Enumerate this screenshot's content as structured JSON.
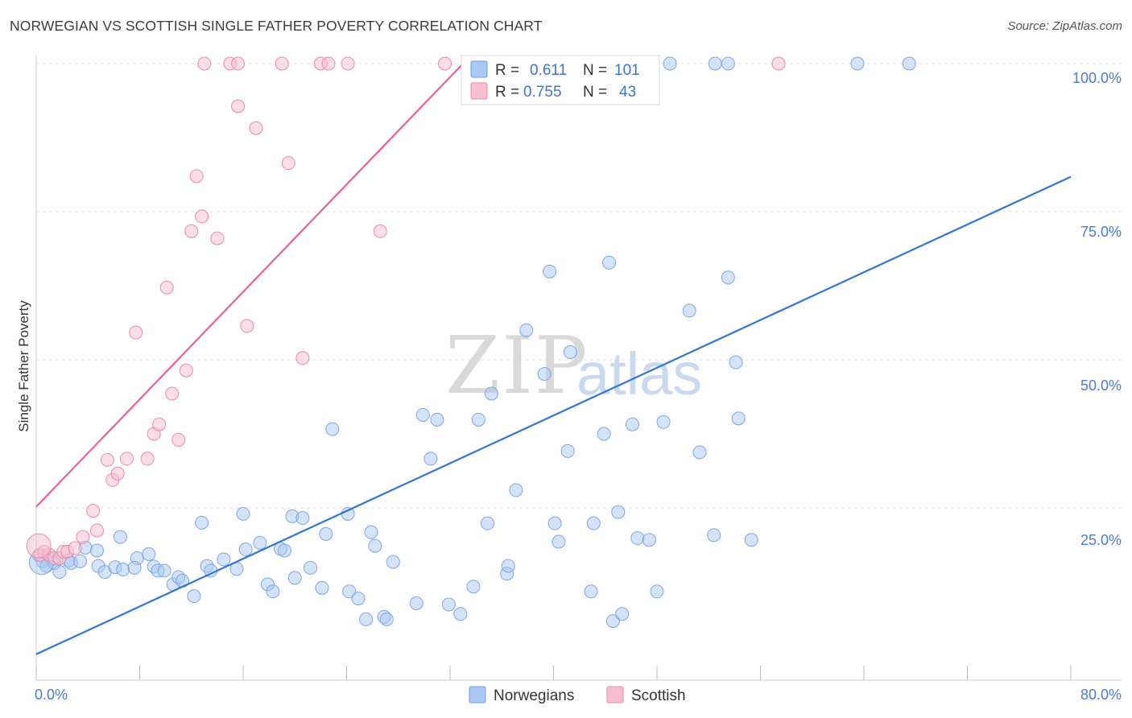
{
  "title": "NORWEGIAN VS SCOTTISH SINGLE FATHER POVERTY CORRELATION CHART",
  "source": "Source: ZipAtlas.com",
  "watermark": {
    "part1": "ZIP",
    "part2": "atlas"
  },
  "legend": {
    "r_label": "R =",
    "n_label": "N =",
    "rows": [
      {
        "r": "0.611",
        "n": "101",
        "color": "#a9c8f2",
        "stroke": "#6f9ee6"
      },
      {
        "r": "0.755",
        "n": "43",
        "color": "#f7bdd0",
        "stroke": "#ec8aa9"
      }
    ]
  },
  "bottom_legend": [
    "Norwegians",
    "Scottish"
  ],
  "colors": {
    "blue_fill": "#a9c8f2",
    "blue_stroke": "#7ba7e6",
    "blue_line": "#2e74d0",
    "pink_fill": "#f7bdd0",
    "pink_stroke": "#ec8aa9",
    "pink_line": "#e8648c",
    "grid": "#e2e2e2",
    "tick_text": "#4a7bd0"
  },
  "chart_data": {
    "type": "scatter",
    "title": "NORWEGIAN VS SCOTTISH SINGLE FATHER POVERTY CORRELATION CHART",
    "xlabel": "",
    "ylabel": "Single Father Poverty",
    "xlim": [
      0,
      80
    ],
    "ylim": [
      0,
      100
    ],
    "x_tick_labels": [
      "0.0%",
      "80.0%"
    ],
    "y_tick_labels": [
      "25.0%",
      "50.0%",
      "75.0%",
      "100.0%"
    ],
    "y_ticks": [
      25,
      50,
      75,
      100
    ],
    "grid": true,
    "legend_position": "top-center",
    "series": [
      {
        "name": "Norwegians",
        "r": 0.611,
        "n": 101,
        "trend": {
          "x": [
            0,
            80
          ],
          "y": [
            0.3,
            80.9
          ]
        },
        "points": [
          [
            0.2,
            17
          ],
          [
            0.5,
            16
          ],
          [
            0.8,
            15.2
          ],
          [
            1.2,
            16.3
          ],
          [
            1.4,
            15.7
          ],
          [
            1.8,
            14.2
          ],
          [
            2.5,
            16.1
          ],
          [
            2.7,
            15.7
          ],
          [
            3.4,
            16
          ],
          [
            3.8,
            18.3
          ],
          [
            4.7,
            17.8
          ],
          [
            4.8,
            15.2
          ],
          [
            5.3,
            14.2
          ],
          [
            6.1,
            15
          ],
          [
            6.5,
            20.1
          ],
          [
            6.7,
            14.6
          ],
          [
            7.8,
            16.5
          ],
          [
            7.6,
            14.9
          ],
          [
            8.7,
            17.2
          ],
          [
            9.1,
            15.1
          ],
          [
            9.4,
            14.4
          ],
          [
            9.9,
            14.4
          ],
          [
            10.6,
            12.1
          ],
          [
            11.0,
            13.3
          ],
          [
            11.3,
            12.7
          ],
          [
            12.2,
            10.1
          ],
          [
            12.8,
            22.5
          ],
          [
            13.2,
            15.2
          ],
          [
            13.5,
            14.4
          ],
          [
            14.5,
            16.3
          ],
          [
            15.5,
            14.7
          ],
          [
            16.0,
            24
          ],
          [
            16.2,
            18
          ],
          [
            17.3,
            19.1
          ],
          [
            17.9,
            12.1
          ],
          [
            18.3,
            10.9
          ],
          [
            18.9,
            18.1
          ],
          [
            19.2,
            17.8
          ],
          [
            19.8,
            23.6
          ],
          [
            20.0,
            13.2
          ],
          [
            20.6,
            23.3
          ],
          [
            21.2,
            14.9
          ],
          [
            22.1,
            11.5
          ],
          [
            22.4,
            20.6
          ],
          [
            22.9,
            38.3
          ],
          [
            24.1,
            24
          ],
          [
            24.2,
            10.9
          ],
          [
            24.9,
            9.7
          ],
          [
            25.5,
            6.2
          ],
          [
            25.9,
            20.9
          ],
          [
            26.2,
            18.6
          ],
          [
            26.9,
            6.6
          ],
          [
            27.1,
            6.2
          ],
          [
            27.6,
            15.9
          ],
          [
            29.4,
            8.9
          ],
          [
            29.9,
            40.7
          ],
          [
            30.5,
            33.3
          ],
          [
            31.0,
            39.9
          ],
          [
            31.9,
            8.7
          ],
          [
            32.8,
            7.1
          ],
          [
            33.8,
            11.7
          ],
          [
            34.2,
            39.9
          ],
          [
            34.9,
            22.4
          ],
          [
            35.2,
            44.3
          ],
          [
            36.4,
            13.9
          ],
          [
            36.5,
            15.2
          ],
          [
            37.1,
            28
          ],
          [
            37.9,
            55
          ],
          [
            39.3,
            47.6
          ],
          [
            39.7,
            64.9
          ],
          [
            40.1,
            22.4
          ],
          [
            40.4,
            19.3
          ],
          [
            41.1,
            34.6
          ],
          [
            41.3,
            51.3
          ],
          [
            42.9,
            10.9
          ],
          [
            43.1,
            22.4
          ],
          [
            43.9,
            37.5
          ],
          [
            44.3,
            66.4
          ],
          [
            44.6,
            5.9
          ],
          [
            45.0,
            24.3
          ],
          [
            45.3,
            7.1
          ],
          [
            46.1,
            39.1
          ],
          [
            46.5,
            19.9
          ],
          [
            47.4,
            19.6
          ],
          [
            48.0,
            10.9
          ],
          [
            48.5,
            39.5
          ],
          [
            50.5,
            58.3
          ],
          [
            51.3,
            34.4
          ],
          [
            52.4,
            20.4
          ],
          [
            53.5,
            63.9
          ],
          [
            54.1,
            49.6
          ],
          [
            54.3,
            40.1
          ],
          [
            55.3,
            19.6
          ],
          [
            39.0,
            100
          ],
          [
            44.5,
            100
          ],
          [
            49.0,
            100
          ],
          [
            52.5,
            100
          ],
          [
            53.5,
            100
          ],
          [
            63.5,
            100
          ],
          [
            67.5,
            100
          ],
          [
            0.4,
            15.8
          ]
        ]
      },
      {
        "name": "Scottish",
        "r": 0.755,
        "n": 43,
        "trend": {
          "x": [
            0,
            33
          ],
          "y": [
            25.2,
            100
          ]
        },
        "points": [
          [
            0.3,
            17.1
          ],
          [
            0.6,
            17.6
          ],
          [
            1.0,
            17.1
          ],
          [
            1.4,
            16.5
          ],
          [
            1.8,
            16.5
          ],
          [
            2.1,
            17.6
          ],
          [
            2.4,
            17.6
          ],
          [
            3.0,
            18.2
          ],
          [
            3.6,
            20.1
          ],
          [
            4.4,
            24.5
          ],
          [
            4.7,
            21.2
          ],
          [
            5.5,
            33.1
          ],
          [
            5.9,
            29.7
          ],
          [
            6.3,
            30.8
          ],
          [
            7.0,
            33.3
          ],
          [
            7.7,
            54.6
          ],
          [
            8.6,
            33.3
          ],
          [
            9.1,
            37.5
          ],
          [
            9.5,
            39.1
          ],
          [
            10.1,
            62.2
          ],
          [
            10.5,
            44.3
          ],
          [
            11.0,
            36.5
          ],
          [
            11.6,
            48.2
          ],
          [
            12.0,
            71.7
          ],
          [
            12.4,
            81
          ],
          [
            12.8,
            74.2
          ],
          [
            14.0,
            70.5
          ],
          [
            15.6,
            92.8
          ],
          [
            16.3,
            55.7
          ],
          [
            17.0,
            89.1
          ],
          [
            19.5,
            83.2
          ],
          [
            20.6,
            50.3
          ],
          [
            26.6,
            71.7
          ],
          [
            13.0,
            100
          ],
          [
            15.0,
            100
          ],
          [
            15.6,
            100
          ],
          [
            19.0,
            100
          ],
          [
            22.0,
            100
          ],
          [
            22.6,
            100
          ],
          [
            24.1,
            100
          ],
          [
            31.6,
            100
          ],
          [
            57.4,
            100
          ],
          [
            0.2,
            18.6
          ]
        ]
      }
    ]
  }
}
